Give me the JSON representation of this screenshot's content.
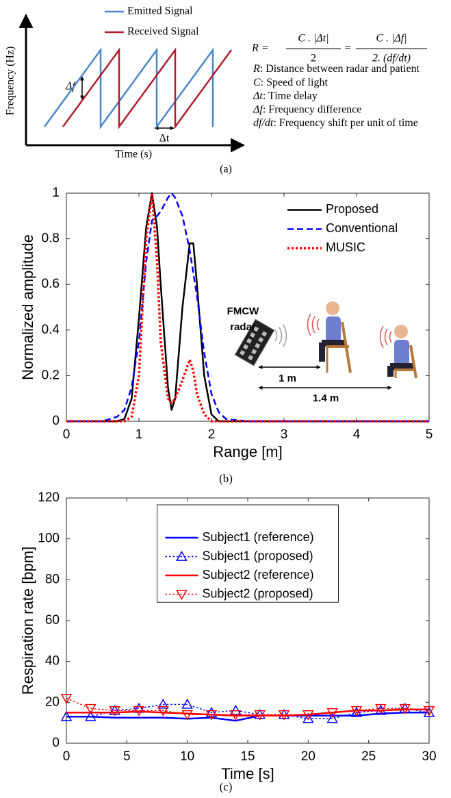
{
  "diagram": {
    "y_axis_label": "Frequency (Hz)",
    "x_axis_label": "Time (s)",
    "legend": [
      {
        "name": "Emitted Signal",
        "color": "#4a86c8"
      },
      {
        "name": "Received Signal",
        "color": "#b01c2e"
      }
    ],
    "delta_f": "Δf",
    "delta_t": "Δt",
    "formula": {
      "lhs": "R =",
      "frac1_num": "C . |Δt|",
      "frac1_den": "2",
      "eq": "=",
      "frac2_num": "C . |Δf|",
      "frac2_den": "2. (df/dt)"
    },
    "definitions": [
      {
        "symbol": "R",
        "text": ": Distance between radar and patient"
      },
      {
        "symbol": "C",
        "text": ": Speed of light"
      },
      {
        "symbol": "Δt",
        "text": ": Time delay"
      },
      {
        "symbol": "Δf",
        "text": ": Frequency difference"
      },
      {
        "symbol": "df/dt",
        "text": ": Frequency shift per unit of time"
      }
    ],
    "caption": "(a)"
  },
  "chart_data": [
    {
      "type": "line",
      "xlabel": "Range [m]",
      "ylabel": "Normalized amplitude",
      "caption": "(b)",
      "x": [
        0,
        0.5,
        0.7,
        0.8,
        0.9,
        1.0,
        1.1,
        1.18,
        1.25,
        1.3,
        1.4,
        1.45,
        1.5,
        1.6,
        1.7,
        1.75,
        1.8,
        1.9,
        2.0,
        2.1,
        2.2,
        2.5,
        3,
        4,
        5
      ],
      "series": [
        {
          "name": "Proposed",
          "color": "#000000",
          "style": "solid",
          "values": [
            0,
            0,
            0,
            0.01,
            0.1,
            0.45,
            0.85,
            1.0,
            0.85,
            0.6,
            0.15,
            0.05,
            0.1,
            0.5,
            0.78,
            0.78,
            0.6,
            0.2,
            0.03,
            0,
            0,
            0,
            0,
            0,
            0
          ]
        },
        {
          "name": "Conventional",
          "color": "#0000ff",
          "style": "dashed",
          "values": [
            0,
            0,
            0.02,
            0.05,
            0.15,
            0.35,
            0.7,
            0.88,
            0.9,
            0.92,
            0.98,
            1.0,
            0.98,
            0.9,
            0.75,
            0.65,
            0.55,
            0.3,
            0.12,
            0.04,
            0.01,
            0,
            0,
            0,
            0
          ]
        },
        {
          "name": "MUSIC",
          "color": "#ff0000",
          "style": "dotted",
          "values": [
            0,
            0,
            0,
            0,
            0.02,
            0.2,
            0.8,
            1.0,
            0.7,
            0.35,
            0.1,
            0.08,
            0.1,
            0.18,
            0.27,
            0.22,
            0.12,
            0.03,
            0,
            0,
            0,
            0,
            0,
            0,
            0
          ]
        }
      ],
      "xlim": [
        0,
        5
      ],
      "xticks": [
        0,
        1,
        2,
        3,
        4,
        5
      ],
      "ylim": [
        0,
        1
      ],
      "yticks": [
        0,
        0.2,
        0.4,
        0.6,
        0.8,
        1
      ],
      "legend": "upper right",
      "legend_box": false,
      "annotations": [
        "FMCW",
        "radar",
        "1 m",
        "1.4 m"
      ]
    },
    {
      "type": "line",
      "xlabel": "Time [s]",
      "ylabel": "Respiration rate [bpm]",
      "caption": "(c)",
      "x": [
        0,
        2,
        4,
        6,
        8,
        10,
        12,
        14,
        16,
        18,
        20,
        22,
        24,
        26,
        28,
        30
      ],
      "series": [
        {
          "name": "Subject1 (reference)",
          "color": "#0000ff",
          "style": "solid",
          "values": [
            13,
            13,
            12.5,
            12.5,
            12.5,
            12,
            12.5,
            11,
            13.5,
            13.5,
            13.5,
            13.5,
            13.5,
            14.5,
            15,
            15
          ]
        },
        {
          "name": "Subject1 (proposed)",
          "color": "#0000ff",
          "style": "dotted",
          "marker": "triangle-up",
          "values": [
            13,
            13,
            16,
            17,
            19,
            19,
            15,
            16,
            14,
            14,
            12,
            12,
            15,
            16,
            17,
            15
          ]
        },
        {
          "name": "Subject2 (reference)",
          "color": "#ff0000",
          "style": "solid",
          "values": [
            15,
            15,
            15,
            15.5,
            15,
            14.5,
            14,
            13.5,
            13.5,
            13.5,
            14,
            15,
            16,
            16,
            16.5,
            16.5
          ]
        },
        {
          "name": "Subject2 (proposed)",
          "color": "#ff0000",
          "style": "dotted",
          "marker": "triangle-down",
          "values": [
            22,
            17,
            16,
            16,
            16,
            14,
            14,
            14,
            14,
            14,
            14,
            15,
            16,
            17,
            17,
            16
          ]
        }
      ],
      "xlim": [
        0,
        30
      ],
      "xticks": [
        0,
        5,
        10,
        15,
        20,
        25,
        30
      ],
      "ylim": [
        0,
        120
      ],
      "yticks": [
        0,
        20,
        40,
        60,
        80,
        100,
        120
      ],
      "legend": "upper center",
      "legend_box": true
    }
  ]
}
